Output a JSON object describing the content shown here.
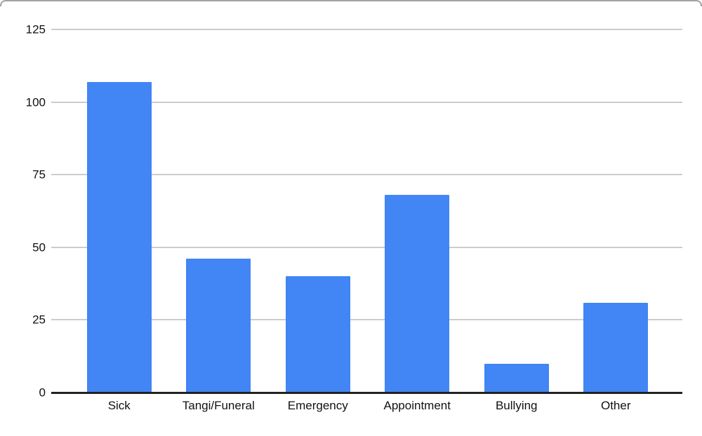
{
  "chart_data": {
    "type": "bar",
    "categories": [
      "Sick",
      "Tangi/Funeral",
      "Emergency",
      "Appointment",
      "Bullying",
      "Other"
    ],
    "values": [
      107,
      46,
      40,
      68,
      10,
      31
    ],
    "title": "",
    "xlabel": "",
    "ylabel": "",
    "ylim": [
      0,
      125
    ],
    "yticks": [
      0,
      25,
      50,
      75,
      100,
      125
    ],
    "grid": true,
    "legend": "none",
    "bar_color": "#4285f4",
    "gridline_color": "#cccccc",
    "axis_line_color": "#212121",
    "tick_label_color": "#111111"
  }
}
